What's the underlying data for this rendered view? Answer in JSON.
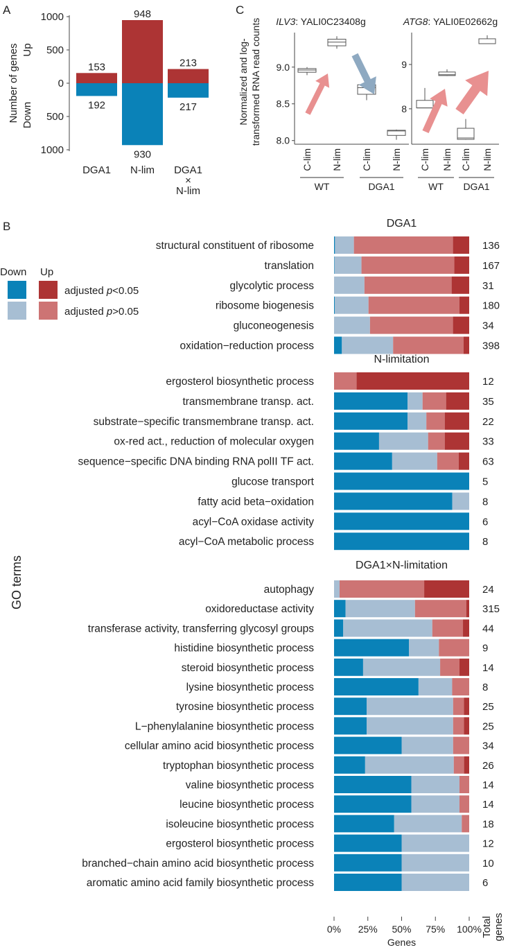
{
  "colors": {
    "down_sig": "#0a82b8",
    "down_ns": "#a7bed3",
    "up_ns": "#cd7474",
    "up_sig": "#ad3434",
    "arrow_up": "#e89090",
    "arrow_down": "#8ea9c1"
  },
  "panels": {
    "a": "A",
    "b": "B",
    "c": "C"
  },
  "chart_data": [
    {
      "id": "A",
      "type": "bar",
      "ylabel": "Number of genes",
      "ylabel_up": "Up",
      "ylabel_down": "Down",
      "yticks_up": [
        "1000",
        "500",
        "0"
      ],
      "yticks_down": [
        "500",
        "1000"
      ],
      "ylim": [
        -1000,
        1000
      ],
      "categories": [
        [
          "DGA1"
        ],
        [
          "N-lim"
        ],
        [
          "DGA1",
          "×",
          "N-lim"
        ]
      ],
      "series": [
        {
          "name": "Up",
          "values": [
            153,
            948,
            213
          ]
        },
        {
          "name": "Down",
          "values": [
            192,
            930,
            217
          ]
        }
      ]
    },
    {
      "id": "C",
      "type": "box",
      "ylabel": [
        "Normalized and log-",
        "transformed RNA read counts"
      ],
      "plots": [
        {
          "gene": "ILV3",
          "locus": ": YALI0C23408g",
          "ylim": [
            7.95,
            9.47
          ],
          "yticks": [
            8.0,
            8.5,
            9.0
          ],
          "ytick_labels": [
            "8.0",
            "8.5",
            "9.0"
          ],
          "boxes": [
            {
              "label": "C-lim",
              "group": "WT",
              "min": 8.89,
              "q1": 8.93,
              "median": 8.96,
              "q3": 8.98,
              "max": 9.0
            },
            {
              "label": "N-lim",
              "group": "WT",
              "min": 9.25,
              "q1": 9.29,
              "median": 9.34,
              "q3": 9.38,
              "max": 9.42
            },
            {
              "label": "C-lim",
              "group": "DGA1",
              "min": 8.55,
              "q1": 8.63,
              "median": 8.72,
              "q3": 8.76,
              "max": 8.8
            },
            {
              "label": "N-lim",
              "group": "DGA1",
              "min": 8.01,
              "q1": 8.07,
              "median": 8.13,
              "q3": 8.14,
              "max": 8.15
            }
          ]
        },
        {
          "gene": "ATG8",
          "locus": ": YALI0E02662g",
          "ylim": [
            7.2,
            9.72
          ],
          "yticks": [
            8,
            9
          ],
          "ytick_labels": [
            "8",
            "9"
          ],
          "boxes": [
            {
              "label": "C-lim",
              "group": "WT",
              "min": 8.02,
              "q1": 8.02,
              "median": 8.02,
              "q3": 8.19,
              "max": 8.47
            },
            {
              "label": "N-lim",
              "group": "WT",
              "min": 8.74,
              "q1": 8.75,
              "median": 8.77,
              "q3": 8.83,
              "max": 8.89
            },
            {
              "label": "C-lim",
              "group": "DGA1",
              "min": 7.3,
              "q1": 7.31,
              "median": 7.34,
              "q3": 7.56,
              "max": 7.77
            },
            {
              "label": "N-lim",
              "group": "DGA1",
              "min": 9.47,
              "q1": 9.47,
              "median": 9.47,
              "q3": 9.58,
              "max": 9.66
            }
          ]
        }
      ],
      "groups": [
        "WT",
        "DGA1"
      ]
    },
    {
      "id": "B",
      "type": "stacked-bar-horizontal",
      "ylabel": "GO terms",
      "xlabel": "Genes",
      "xticks": [
        "0%",
        "25%",
        "50%",
        "75%",
        "100%"
      ],
      "total_label": [
        "Total",
        "genes"
      ],
      "legend": {
        "down": "Down",
        "up": "Up",
        "sig_prefix": "adjusted ",
        "p": "p",
        "sig_suffix": "<0.05",
        "ns_suffix": ">0.05"
      },
      "stack_order": [
        "down_sig",
        "down_ns",
        "up_ns",
        "up_sig"
      ],
      "groups": [
        {
          "title": "DGA1",
          "terms": [
            {
              "term": "structural constituent of ribosome",
              "total": 136,
              "fractions": [
                0.007,
                0.14,
                0.733,
                0.12
              ]
            },
            {
              "term": "translation",
              "total": 167,
              "fractions": [
                0.003,
                0.2,
                0.687,
                0.11
              ]
            },
            {
              "term": "glycolytic process",
              "total": 31,
              "fractions": [
                0,
                0.225,
                0.645,
                0.13
              ]
            },
            {
              "term": "ribosome biogenesis",
              "total": 180,
              "fractions": [
                0.005,
                0.25,
                0.672,
                0.073
              ]
            },
            {
              "term": "gluconeogenesis",
              "total": 34,
              "fractions": [
                0,
                0.266,
                0.614,
                0.12
              ]
            },
            {
              "term": "oxidation−reduction process",
              "total": 398,
              "fractions": [
                0.058,
                0.379,
                0.522,
                0.041
              ]
            }
          ]
        },
        {
          "title": "N-limitation",
          "terms": [
            {
              "term": "ergosterol biosynthetic process",
              "total": 12,
              "fractions": [
                0,
                0,
                0.167,
                0.833
              ]
            },
            {
              "term": "transmembrane transp. act.",
              "total": 35,
              "fractions": [
                0.544,
                0.111,
                0.174,
                0.171
              ]
            },
            {
              "term": "substrate−specific transmembrane transp. act.",
              "total": 22,
              "fractions": [
                0.544,
                0.139,
                0.136,
                0.181
              ]
            },
            {
              "term": "ox-red act., reduction of molecular oxygen",
              "total": 33,
              "fractions": [
                0.333,
                0.363,
                0.123,
                0.181
              ]
            },
            {
              "term": "sequence−specific DNA binding RNA polII TF act.",
              "total": 63,
              "fractions": [
                0.43,
                0.333,
                0.159,
                0.078
              ]
            },
            {
              "term": "glucose transport",
              "total": 5,
              "fractions": [
                1,
                0,
                0,
                0
              ]
            },
            {
              "term": "fatty acid beta−oxidation",
              "total": 8,
              "fractions": [
                0.875,
                0.125,
                0,
                0
              ]
            },
            {
              "term": "acyl−CoA oxidase activity",
              "total": 6,
              "fractions": [
                1,
                0,
                0,
                0
              ]
            },
            {
              "term": "acyl−CoA metabolic process",
              "total": 8,
              "fractions": [
                1,
                0,
                0,
                0
              ]
            }
          ]
        },
        {
          "title": "DGA1×N-limitation",
          "terms": [
            {
              "term": "autophagy",
              "total": 24,
              "fractions": [
                0,
                0.041,
                0.626,
                0.333
              ]
            },
            {
              "term": "oxidoreductase activity",
              "total": 315,
              "fractions": [
                0.085,
                0.514,
                0.379,
                0.022
              ]
            },
            {
              "term": "transferase activity, transferring glycosyl groups",
              "total": 44,
              "fractions": [
                0.068,
                0.659,
                0.227,
                0.046
              ]
            },
            {
              "term": "histidine biosynthetic process",
              "total": 9,
              "fractions": [
                0.555,
                0.221,
                0.224,
                0
              ]
            },
            {
              "term": "steroid biosynthetic process",
              "total": 14,
              "fractions": [
                0.215,
                0.57,
                0.143,
                0.072
              ]
            },
            {
              "term": "lysine biosynthetic process",
              "total": 8,
              "fractions": [
                0.625,
                0.249,
                0.126,
                0
              ]
            },
            {
              "term": "tyrosine biosynthetic process",
              "total": 25,
              "fractions": [
                0.241,
                0.64,
                0.08,
                0.039
              ]
            },
            {
              "term": "L−phenylalanine biosynthetic process",
              "total": 25,
              "fractions": [
                0.241,
                0.64,
                0.08,
                0.039
              ]
            },
            {
              "term": "cellular amino acid biosynthetic process",
              "total": 34,
              "fractions": [
                0.5,
                0.381,
                0.119,
                0
              ]
            },
            {
              "term": "tryptophan biosynthetic process",
              "total": 26,
              "fractions": [
                0.23,
                0.656,
                0.076,
                0.038
              ]
            },
            {
              "term": "valine biosynthetic process",
              "total": 14,
              "fractions": [
                0.572,
                0.356,
                0.072,
                0
              ]
            },
            {
              "term": "leucine biosynthetic process",
              "total": 14,
              "fractions": [
                0.572,
                0.356,
                0.072,
                0
              ]
            },
            {
              "term": "isoleucine biosynthetic process",
              "total": 18,
              "fractions": [
                0.445,
                0.5,
                0.055,
                0
              ]
            },
            {
              "term": "ergosterol biosynthetic process",
              "total": 12,
              "fractions": [
                0.5,
                0.5,
                0,
                0
              ]
            },
            {
              "term": "branched−chain amino acid biosynthetic process",
              "total": 10,
              "fractions": [
                0.5,
                0.5,
                0,
                0
              ]
            },
            {
              "term": "aromatic amino acid family biosynthetic process",
              "total": 6,
              "fractions": [
                0.5,
                0.5,
                0,
                0
              ]
            }
          ]
        }
      ]
    }
  ]
}
